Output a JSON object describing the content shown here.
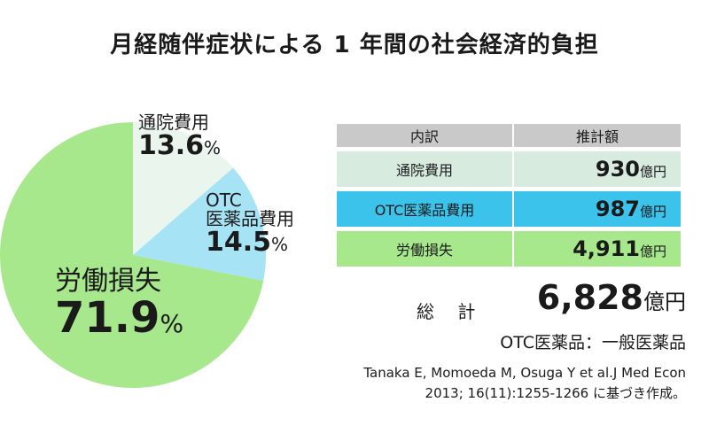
{
  "title": "月経随伴症状による 1 年間の社会経済的負担",
  "chart_data": {
    "type": "pie",
    "slices": [
      {
        "name": "通院費用",
        "value": 13.6,
        "unit": "%",
        "color": "#eaf5ee"
      },
      {
        "name_lines": [
          "OTC",
          "医薬品費用"
        ],
        "value": 14.5,
        "unit": "%",
        "color": "#a6e3f5"
      },
      {
        "name": "労働損失",
        "value": 71.9,
        "unit": "%",
        "color": "#a8e88c"
      }
    ]
  },
  "table": {
    "headers": [
      "内訳",
      "推計額"
    ],
    "rows": [
      {
        "item": "通院費用",
        "amount": "930",
        "unit": "億円",
        "color": "#d7ecdf"
      },
      {
        "item": "OTC医薬品費用",
        "amount": "987",
        "unit": "億円",
        "color": "#3cc3eb"
      },
      {
        "item": "労働損失",
        "amount": "4,911",
        "unit": "億円",
        "color": "#a8e88c"
      }
    ]
  },
  "total": {
    "label": "総 計",
    "amount": "6,828",
    "unit": "億円"
  },
  "note": "OTC医薬品：一般医薬品",
  "source": [
    "Tanaka E, Momoeda M, Osuga Y et al.J Med Econ",
    "2013; 16(11):1255-1266 に基づき作成。"
  ]
}
